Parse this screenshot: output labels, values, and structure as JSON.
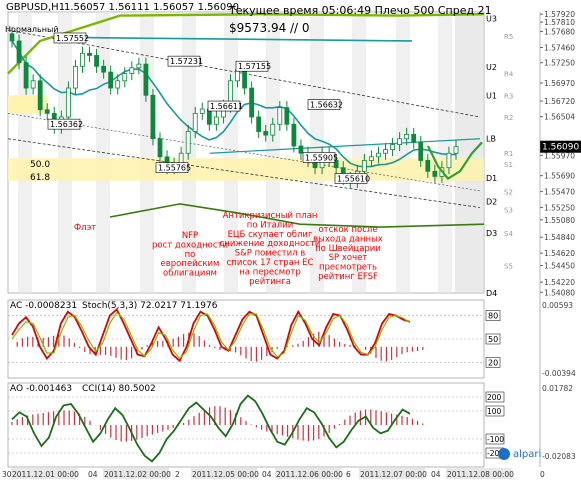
{
  "header": {
    "symbol": "GBPUSD,H1",
    "ohlc": "1.56057 1.56111 1.56057 1.56090",
    "server_time": "Текущее время 05:06:49 Плечо 500 Спред 21",
    "equity": "$9573.94",
    "equity_suffix": "// 0",
    "indicator_name": "Нормальный"
  },
  "colors": {
    "background": "#ffffff",
    "candle_up": "#0a8a3a",
    "candle_down": "#0a8a3a",
    "channel_line": "#1a9a9a",
    "green_band": "#7ab800",
    "fib_zone": "#fff3b0",
    "annotation_text": "#ff0000",
    "stoch_main": "#dd0000",
    "stoch_signal": "#7cbf00",
    "cci_line": "#1a6e1a",
    "histogram": "#d03040",
    "brand": "#1e6fc8"
  },
  "chart_data": [
    {
      "type": "line",
      "title": "GBPUSD,H1",
      "ylim": [
        1.5407,
        1.5795
      ],
      "y_ticks": [
        "1.57920",
        "1.57810",
        "1.57680",
        "1.57460",
        "1.57250",
        "1.56970",
        "1.56720",
        "1.56504",
        "1.56090",
        "1.55970",
        "1.55690",
        "1.55470",
        "1.55250",
        "1.55080",
        "1.54840",
        "1.54620",
        "1.54450",
        "1.54220",
        "1.54080"
      ],
      "level_labels": [
        {
          "name": "U3",
          "value": 1.5786
        },
        {
          "name": "R5",
          "value": 1.5762
        },
        {
          "name": "U2",
          "value": 1.5719
        },
        {
          "name": "R4",
          "value": 1.571
        },
        {
          "name": "U1",
          "value": 1.568
        },
        {
          "name": "R3",
          "value": 1.568
        },
        {
          "name": "R2",
          "value": 1.565
        },
        {
          "name": "LB",
          "value": 1.562
        },
        {
          "name": "R1",
          "value": 1.56
        },
        {
          "name": "S1",
          "value": 1.5585
        },
        {
          "name": "D1",
          "value": 1.5566
        },
        {
          "name": "S2",
          "value": 1.5547
        },
        {
          "name": "D2",
          "value": 1.5533
        },
        {
          "name": "S3",
          "value": 1.5522
        },
        {
          "name": "D3",
          "value": 1.549
        },
        {
          "name": "S4",
          "value": 1.549
        },
        {
          "name": "S5",
          "value": 1.5445
        },
        {
          "name": "D4",
          "value": 1.5407
        }
      ],
      "fib_levels": [
        {
          "name": "50.0",
          "value": 1.5585
        },
        {
          "name": "61.8",
          "value": 1.5567
        }
      ],
      "price_labels": [
        "1.57552",
        "1.57231",
        "1.57155",
        "1.56362",
        "1.56611",
        "1.56632",
        "1.55765",
        "1.55905",
        "1.55610"
      ],
      "current_price": "1.56090",
      "close": [
        1.5755,
        1.5725,
        1.569,
        1.57,
        1.566,
        1.5655,
        1.5636,
        1.565,
        1.569,
        1.572,
        1.5738,
        1.5735,
        1.572,
        1.5712,
        1.569,
        1.57,
        1.571,
        1.5718,
        1.5723,
        1.568,
        1.562,
        1.5595,
        1.558,
        1.5585,
        1.56,
        1.563,
        1.5655,
        1.5661,
        1.564,
        1.565,
        1.5665,
        1.57,
        1.5715,
        1.569,
        1.565,
        1.563,
        1.5625,
        1.564,
        1.5663,
        1.564,
        1.561,
        1.56,
        1.559,
        1.558,
        1.56,
        1.559,
        1.558,
        1.5565,
        1.5561,
        1.5575,
        1.559,
        1.5595,
        1.56,
        1.5605,
        1.5612,
        1.562,
        1.5626,
        1.5615,
        1.559,
        1.5575,
        1.5568,
        1.558,
        1.56,
        1.5609
      ],
      "annotations": [
        "Флэт",
        "NFP\nрост доходности\nпо\nевропейским\nоблигациям",
        "Антикризисный план\nпо Италии\nЕЦБ скупает облиг\nснижение доходности\nS&P поместил в\nсписок 17 стран ЕС\nна пересмотр\nрейтинга",
        "отскок после\nвыхода данных\nпо Швейцарии\nSP хочет\nпресмотреть\nрейтинг EFSF"
      ]
    },
    {
      "type": "line",
      "title": "AC",
      "indicator_label": "AC -0.0008231",
      "stoch_label": "Stoch(5,3,3) 72.0217 71.1976",
      "ylim": [
        0,
        100
      ],
      "levels": [
        80,
        50,
        20
      ],
      "right_labels": [
        "0.00593",
        "-0.00394"
      ],
      "series": [
        {
          "name": "Stoch main",
          "values": [
            55,
            70,
            78,
            66,
            40,
            25,
            35,
            70,
            85,
            78,
            60,
            40,
            30,
            55,
            80,
            88,
            70,
            50,
            30,
            28,
            45,
            65,
            50,
            30,
            22,
            40,
            70,
            85,
            80,
            62,
            40,
            35,
            55,
            75,
            85,
            80,
            55,
            30,
            25,
            35,
            68,
            85,
            70,
            50,
            42,
            65,
            82,
            80,
            62,
            40,
            30,
            30,
            45,
            70,
            82,
            80,
            75,
            72
          ]
        },
        {
          "name": "Stoch signal",
          "values": [
            50,
            62,
            72,
            70,
            52,
            32,
            32,
            58,
            78,
            80,
            66,
            48,
            34,
            45,
            70,
            84,
            76,
            56,
            36,
            28,
            38,
            58,
            55,
            36,
            25,
            34,
            60,
            80,
            82,
            68,
            46,
            36,
            48,
            68,
            82,
            82,
            62,
            38,
            27,
            32,
            58,
            80,
            74,
            56,
            45,
            58,
            76,
            80,
            68,
            46,
            33,
            30,
            40,
            62,
            78,
            80,
            77,
            71
          ]
        }
      ]
    },
    {
      "type": "line",
      "title": "AO",
      "indicator_label": "AO -0.001463",
      "cci_label": "CCI(14) 80.5002",
      "ylim": [
        -300,
        300
      ],
      "levels": [
        200,
        100,
        -100,
        -200
      ],
      "right_labels": [
        "0.01782",
        "-0.02083"
      ],
      "series": [
        {
          "name": "CCI",
          "values": [
            40,
            90,
            60,
            -60,
            -150,
            -90,
            60,
            140,
            150,
            80,
            -20,
            -120,
            -60,
            40,
            120,
            70,
            -30,
            -140,
            -220,
            -260,
            -200,
            -100,
            -40,
            40,
            120,
            160,
            110,
            60,
            -20,
            -80,
            10,
            150,
            210,
            170,
            80,
            -30,
            -120,
            -140,
            -60,
            40,
            120,
            90,
            10,
            -90,
            -160,
            -120,
            -40,
            30,
            60,
            -20,
            -60,
            -40,
            40,
            110,
            80
          ]
        }
      ]
    }
  ],
  "x_axis": [
    "30",
    "2011.12.01 00:00",
    "04",
    "2011.12.02 00:00",
    "2",
    "2011.12.05 00:00",
    "04",
    "2011.12.06 00:00",
    "6",
    "2011.12.07 00:00",
    "04",
    "2011.12.08 00:00",
    "0"
  ],
  "brand": {
    "logo": "alpari"
  }
}
